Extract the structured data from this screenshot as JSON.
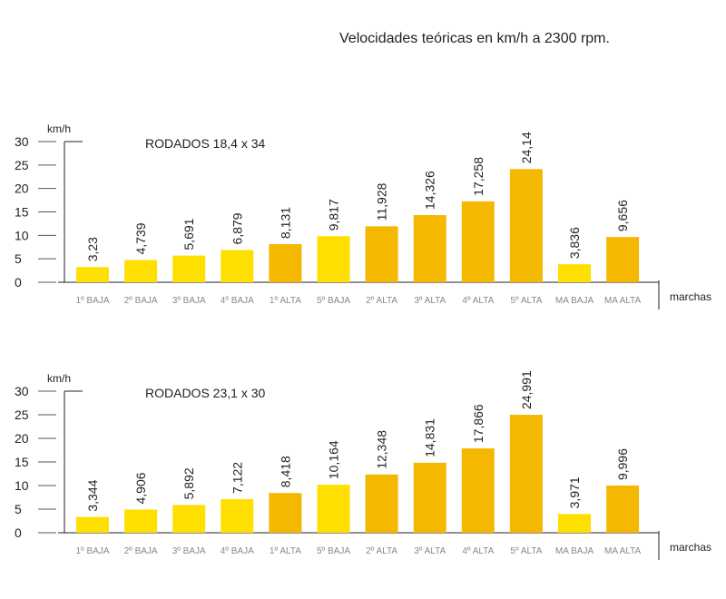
{
  "page_title": "Velocidades teóricas en km/h a 2300 rpm.",
  "colors": {
    "light": "#FFDF00",
    "dark": "#F5B800",
    "axis": "#222222",
    "cat_text": "#888888"
  },
  "chart_data": [
    {
      "type": "bar",
      "title": "RODADOS 18,4 x 34",
      "ylabel": "km/h",
      "xlabel": "marchas",
      "ylim": [
        0,
        30
      ],
      "yticks": [
        0,
        5,
        10,
        15,
        20,
        25,
        30
      ],
      "categories": [
        "1º BAJA",
        "2º BAJA",
        "3º BAJA",
        "4º BAJA",
        "1º ALTA",
        "5º BAJA",
        "2º ALTA",
        "3º ALTA",
        "4º ALTA",
        "5º ALTA",
        "MA BAJA",
        "MA ALTA"
      ],
      "values": [
        3.23,
        4.739,
        5.691,
        6.879,
        8.131,
        9.817,
        11.928,
        14.326,
        17.258,
        24.14,
        3.836,
        9.656
      ],
      "value_labels": [
        "3,23",
        "4,739",
        "5,691",
        "6,879",
        "8,131",
        "9,817",
        "11,928",
        "14,326",
        "17,258",
        "24,14",
        "3,836",
        "9,656"
      ],
      "bar_colors": [
        "#FFDF00",
        "#FFDF00",
        "#FFDF00",
        "#FFDF00",
        "#F5B800",
        "#FFDF00",
        "#F5B800",
        "#F5B800",
        "#F5B800",
        "#F5B800",
        "#FFDF00",
        "#F5B800"
      ]
    },
    {
      "type": "bar",
      "title": "RODADOS 23,1 x 30",
      "ylabel": "km/h",
      "xlabel": "marchas",
      "ylim": [
        0,
        30
      ],
      "yticks": [
        0,
        5,
        10,
        15,
        20,
        25,
        30
      ],
      "categories": [
        "1º BAJA",
        "2º BAJA",
        "3º BAJA",
        "4º BAJA",
        "1º ALTA",
        "5º BAJA",
        "2º ALTA",
        "3º ALTA",
        "4º ALTA",
        "5º ALTA",
        "MA BAJA",
        "MA ALTA"
      ],
      "values": [
        3.344,
        4.906,
        5.892,
        7.122,
        8.418,
        10.164,
        12.348,
        14.831,
        17.866,
        24.991,
        3.971,
        9.996
      ],
      "value_labels": [
        "3,344",
        "4,906",
        "5,892",
        "7,122",
        "8,418",
        "10,164",
        "12,348",
        "14,831",
        "17,866",
        "24,991",
        "3,971",
        "9,996"
      ],
      "bar_colors": [
        "#FFDF00",
        "#FFDF00",
        "#FFDF00",
        "#FFDF00",
        "#F5B800",
        "#FFDF00",
        "#F5B800",
        "#F5B800",
        "#F5B800",
        "#F5B800",
        "#FFDF00",
        "#F5B800"
      ]
    }
  ]
}
